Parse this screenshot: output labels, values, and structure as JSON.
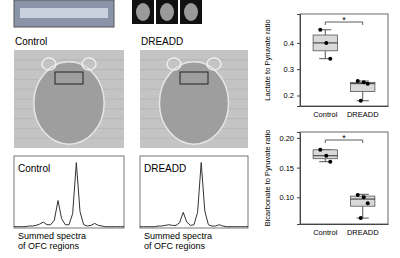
{
  "images": [
    {
      "label": "Control"
    },
    {
      "label": "DREADD"
    }
  ],
  "chart_data": [
    {
      "type": "box",
      "ylabel": "Lactate to Pyruvate ratio",
      "categories": [
        "Control",
        "DREADD"
      ],
      "boxes": [
        {
          "q1": 0.37,
          "median": 0.4,
          "q3": 0.43,
          "whislo": 0.34,
          "whishi": 0.45
        },
        {
          "q1": 0.215,
          "median": 0.245,
          "q3": 0.25,
          "whislo": 0.18,
          "whishi": 0.255
        }
      ],
      "points": [
        [
          0.45,
          0.4,
          0.34
        ],
        [
          0.255,
          0.25,
          0.245,
          0.18
        ]
      ],
      "ylim": [
        0.16,
        0.51
      ],
      "yticks": [
        0.2,
        0.3,
        0.4
      ],
      "annotations": [
        "*"
      ],
      "color": "#d9d9d9"
    },
    {
      "type": "box",
      "ylabel": "Bicarbonate to Pyruvate ratio",
      "categories": [
        "Control",
        "DREADD"
      ],
      "boxes": [
        {
          "q1": 0.165,
          "median": 0.17,
          "q3": 0.18,
          "whislo": 0.16,
          "whishi": 0.18
        },
        {
          "q1": 0.085,
          "median": 0.097,
          "q3": 0.102,
          "whislo": 0.065,
          "whishi": 0.105
        }
      ],
      "points": [
        [
          0.18,
          0.17,
          0.16
        ],
        [
          0.104,
          0.1,
          0.09,
          0.065
        ]
      ],
      "ylim": [
        0.055,
        0.21
      ],
      "yticks": [
        {
          "value": 0.1,
          "label": "0.10"
        },
        {
          "value": 0.15,
          "label": "0.15"
        },
        {
          "value": 0.2,
          "label": "0.20"
        }
      ],
      "annotations": [
        "*"
      ],
      "color": "#d9d9d9"
    },
    {
      "type": "line",
      "title": "Control",
      "caption": [
        "Summed spectra",
        "of OFC regions"
      ],
      "x": [
        0,
        1,
        2,
        3,
        4,
        5,
        6,
        7,
        8,
        9,
        10,
        11,
        12,
        13,
        14,
        15,
        16,
        17,
        18,
        19,
        20,
        21,
        22,
        23,
        24,
        25,
        26,
        27,
        28,
        29,
        30
      ],
      "values": [
        0.02,
        0.02,
        0.02,
        0.02,
        0.03,
        0.03,
        0.04,
        0.06,
        0.09,
        0.05,
        0.05,
        0.12,
        0.42,
        0.14,
        0.05,
        0.05,
        0.22,
        1.0,
        0.25,
        0.05,
        0.03,
        0.04,
        0.07,
        0.04,
        0.03,
        0.02,
        0.02,
        0.02,
        0.02,
        0.02,
        0.02
      ],
      "xlim": [
        0,
        30
      ],
      "ylim": [
        0,
        1.1
      ],
      "tick_labels": false,
      "color": "#333333"
    },
    {
      "type": "line",
      "title": "DREADD",
      "caption": [
        "Summed spectra",
        "of OFC regions"
      ],
      "x": [
        0,
        1,
        2,
        3,
        4,
        5,
        6,
        7,
        8,
        9,
        10,
        11,
        12,
        13,
        14,
        15,
        16,
        17,
        18,
        19,
        20,
        21,
        22,
        23,
        24,
        25,
        26,
        27,
        28,
        29,
        30
      ],
      "values": [
        0.02,
        0.02,
        0.02,
        0.02,
        0.02,
        0.03,
        0.03,
        0.04,
        0.05,
        0.04,
        0.04,
        0.08,
        0.24,
        0.09,
        0.04,
        0.05,
        0.24,
        1.0,
        0.26,
        0.05,
        0.03,
        0.03,
        0.05,
        0.03,
        0.02,
        0.02,
        0.02,
        0.02,
        0.02,
        0.02,
        0.02
      ],
      "xlim": [
        0,
        30
      ],
      "ylim": [
        0,
        1.1
      ],
      "tick_labels": false,
      "color": "#333333"
    }
  ]
}
